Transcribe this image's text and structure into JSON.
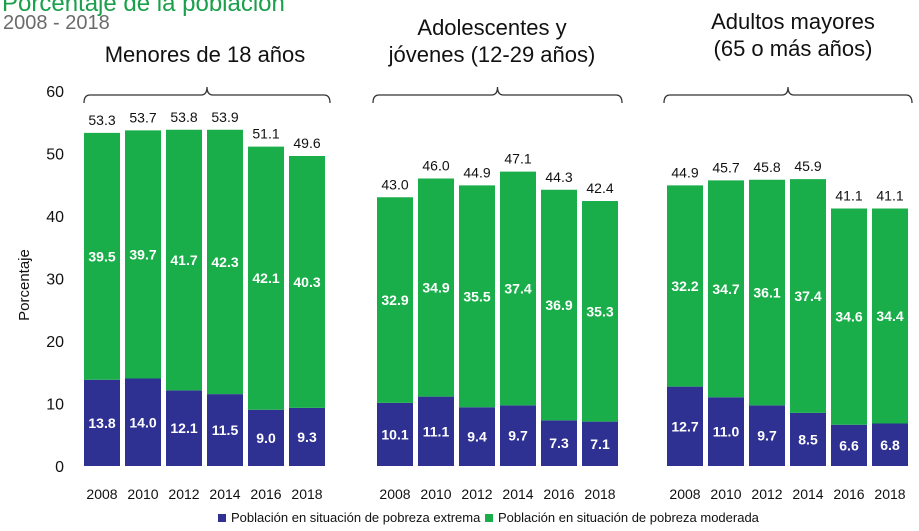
{
  "chart_data": {
    "type": "bar",
    "stacked": true,
    "title": "Porcentaje de la población",
    "subtitle": "2008 - 2018",
    "ylabel": "Porcentaje",
    "ylim": [
      0,
      60
    ],
    "yticks": [
      "0",
      "10",
      "20",
      "30",
      "40",
      "50",
      "60"
    ],
    "grid": false,
    "legend_position": "bottom",
    "colors": {
      "extrema": "#2e3192",
      "moderada": "#1aae4a",
      "text_light": "#ffffff",
      "text_dark": "#111111"
    },
    "series": [
      {
        "name": "Población en situación de pobreza extrema"
      },
      {
        "name": "Población en situación de pobreza moderada"
      }
    ],
    "groups": [
      {
        "label_lines": [
          "Menores de 18 años"
        ],
        "categories": [
          "2008",
          "2010",
          "2012",
          "2014",
          "2016",
          "2018"
        ],
        "extrema": [
          "13.8",
          "14.0",
          "12.1",
          "11.5",
          "9.0",
          "9.3"
        ],
        "moderada": [
          "39.5",
          "39.7",
          "41.7",
          "42.3",
          "42.1",
          "40.3"
        ],
        "total": [
          "53.3",
          "53.7",
          "53.8",
          "53.9",
          "51.1",
          "49.6"
        ]
      },
      {
        "label_lines": [
          "Adolescentes y",
          "jóvenes (12-29 años)"
        ],
        "categories": [
          "2008",
          "2010",
          "2012",
          "2014",
          "2016",
          "2018"
        ],
        "extrema": [
          "10.1",
          "11.1",
          "9.4",
          "9.7",
          "7.3",
          "7.1"
        ],
        "moderada": [
          "32.9",
          "34.9",
          "35.5",
          "37.4",
          "36.9",
          "35.3"
        ],
        "total": [
          "43.0",
          "46.0",
          "44.9",
          "47.1",
          "44.3",
          "42.4"
        ]
      },
      {
        "label_lines": [
          "Adultos mayores",
          "(65 o más años)"
        ],
        "categories": [
          "2008",
          "2010",
          "2012",
          "2014",
          "2016",
          "2018"
        ],
        "extrema": [
          "12.7",
          "11.0",
          "9.7",
          "8.5",
          "6.6",
          "6.8"
        ],
        "moderada": [
          "32.2",
          "34.7",
          "36.1",
          "37.4",
          "34.6",
          "34.4"
        ],
        "total": [
          "44.9",
          "45.7",
          "45.8",
          "45.9",
          "41.1",
          "41.1"
        ]
      }
    ]
  }
}
